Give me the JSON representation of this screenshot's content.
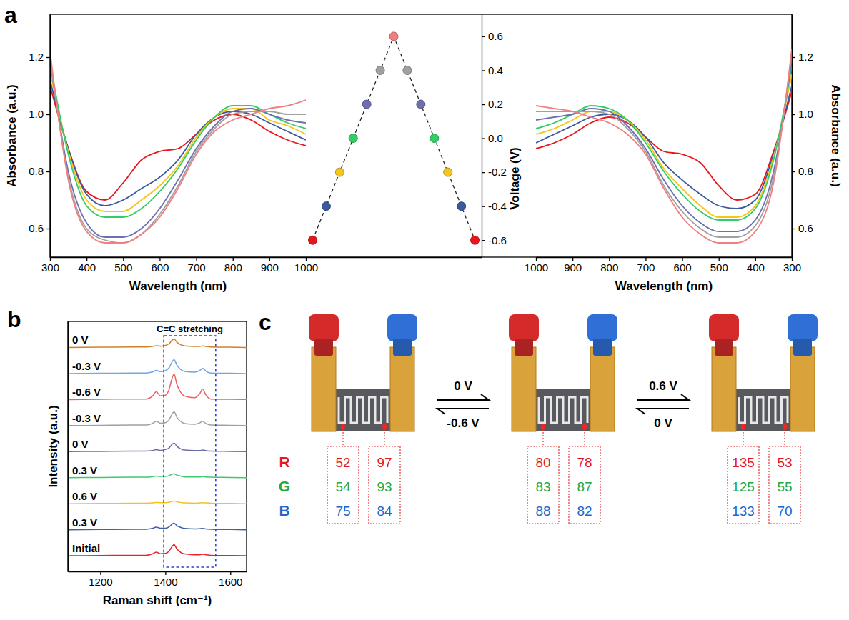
{
  "chart_data": [
    {
      "type": "line",
      "x_label": "Wavelength (nm)",
      "y_label": "Absorbance (a.u.)",
      "x": [
        300,
        350,
        400,
        450,
        500,
        550,
        600,
        650,
        700,
        750,
        800,
        850,
        900,
        950,
        1000
      ],
      "xlim": [
        300,
        1000
      ],
      "xticks": [
        300,
        400,
        500,
        600,
        700,
        800,
        900,
        1000
      ],
      "ylim": [
        0.5,
        1.35
      ],
      "yticks": [
        0.6,
        0.8,
        {
          "value": 1,
          "label": "1.0"
        },
        1.2
      ],
      "series": [
        {
          "color": "#e8161c",
          "values": [
            1.1,
            0.88,
            0.73,
            0.7,
            0.76,
            0.84,
            0.87,
            0.88,
            0.93,
            0.98,
            1.0,
            0.98,
            0.94,
            0.91,
            0.89
          ]
        },
        {
          "color": "#3a5a9c",
          "values": [
            1.12,
            0.88,
            0.72,
            0.68,
            0.7,
            0.74,
            0.78,
            0.84,
            0.93,
            0.99,
            1.01,
            1.0,
            0.97,
            0.94,
            0.91
          ]
        },
        {
          "color": "#f5c518",
          "values": [
            1.15,
            0.87,
            0.7,
            0.66,
            0.66,
            0.7,
            0.75,
            0.82,
            0.92,
            0.99,
            1.02,
            1.02,
            0.98,
            0.96,
            0.93
          ]
        },
        {
          "color": "#33cc66",
          "values": [
            1.18,
            0.86,
            0.68,
            0.64,
            0.64,
            0.67,
            0.73,
            0.81,
            0.91,
            0.99,
            1.03,
            1.03,
            1.0,
            0.97,
            0.95
          ]
        },
        {
          "color": "#6f6fb0",
          "values": [
            1.19,
            0.8,
            0.62,
            0.57,
            0.57,
            0.6,
            0.67,
            0.77,
            0.88,
            0.96,
            1.01,
            1.02,
            1.0,
            0.98,
            0.97
          ]
        },
        {
          "color": "#a0a0a0",
          "values": [
            1.2,
            0.78,
            0.6,
            0.56,
            0.55,
            0.58,
            0.65,
            0.75,
            0.87,
            0.95,
            1.0,
            1.01,
            1.01,
            1.0,
            1.0
          ]
        },
        {
          "color": "#f08080",
          "values": [
            1.22,
            0.77,
            0.59,
            0.55,
            0.55,
            0.58,
            0.64,
            0.74,
            0.86,
            0.94,
            0.98,
            1.0,
            1.02,
            1.03,
            1.05
          ]
        }
      ]
    },
    {
      "type": "line",
      "y_label": "Voltage (V)",
      "x": [
        0,
        1,
        2,
        3,
        4,
        5,
        6,
        7,
        8,
        9,
        10,
        11,
        12
      ],
      "xlim": [
        -0.5,
        12.5
      ],
      "xticks": [],
      "ylim": [
        -0.7,
        0.73
      ],
      "yticks": [
        0.6,
        0.4,
        0.2,
        {
          "value": 0,
          "label": "0.0"
        },
        -0.2,
        -0.4,
        -0.6
      ],
      "tick_labels": "y",
      "marker": "circle",
      "line_style": "dashed",
      "series": [
        {
          "color": "#222222",
          "colors": [
            "#e8161c",
            "#3a5a9c",
            "#f5c518",
            "#33cc66",
            "#6f6fb0",
            "#a0a0a0",
            "#f08080",
            "#a0a0a0",
            "#6f6fb0",
            "#33cc66",
            "#f5c518",
            "#3a5a9c",
            "#e8161c"
          ],
          "values": [
            -0.6,
            -0.4,
            -0.2,
            0,
            0.2,
            0.4,
            0.6,
            0.4,
            0.2,
            0,
            -0.2,
            -0.4,
            -0.6
          ]
        }
      ]
    },
    {
      "type": "line",
      "x_label": "Wavelength (nm)",
      "y_label": "Absorbance (a.u.)",
      "x": [
        300,
        350,
        400,
        450,
        500,
        550,
        600,
        650,
        700,
        750,
        800,
        850,
        900,
        950,
        1000
      ],
      "xlim": [
        1000,
        300
      ],
      "xticks": [
        1000,
        900,
        800,
        700,
        600,
        500,
        400,
        300
      ],
      "ylim": [
        0.5,
        1.35
      ],
      "yticks": [
        0.6,
        0.8,
        {
          "value": 1,
          "label": "1.0"
        },
        1.2
      ],
      "series": [
        {
          "color": "#e8161c",
          "values": [
            1.08,
            0.87,
            0.72,
            0.7,
            0.75,
            0.83,
            0.86,
            0.87,
            0.92,
            0.97,
            0.99,
            0.97,
            0.93,
            0.9,
            0.88
          ]
        },
        {
          "color": "#3a5a9c",
          "values": [
            1.1,
            0.86,
            0.7,
            0.67,
            0.68,
            0.72,
            0.77,
            0.83,
            0.92,
            0.98,
            1.0,
            0.99,
            0.96,
            0.93,
            0.9
          ]
        },
        {
          "color": "#f5c518",
          "values": [
            1.14,
            0.85,
            0.68,
            0.64,
            0.64,
            0.68,
            0.74,
            0.81,
            0.91,
            0.98,
            1.01,
            1.01,
            0.98,
            0.95,
            0.93
          ]
        },
        {
          "color": "#33cc66",
          "values": [
            1.17,
            0.84,
            0.67,
            0.63,
            0.63,
            0.66,
            0.72,
            0.8,
            0.9,
            0.98,
            1.02,
            1.03,
            1.0,
            0.97,
            0.95
          ]
        },
        {
          "color": "#6f6fb0",
          "values": [
            1.19,
            0.8,
            0.63,
            0.59,
            0.59,
            0.62,
            0.68,
            0.77,
            0.88,
            0.96,
            1.01,
            1.02,
            1.0,
            0.99,
            0.98
          ]
        },
        {
          "color": "#a0a0a0",
          "values": [
            1.21,
            0.78,
            0.61,
            0.57,
            0.57,
            0.6,
            0.66,
            0.75,
            0.87,
            0.95,
            1.0,
            1.01,
            1.01,
            1.01,
            1.01
          ]
        },
        {
          "color": "#f08080",
          "values": [
            1.23,
            0.76,
            0.59,
            0.55,
            0.55,
            0.58,
            0.64,
            0.74,
            0.86,
            0.93,
            0.97,
            0.99,
            1.01,
            1.02,
            1.03
          ]
        }
      ]
    },
    {
      "type": "line",
      "x_label": "Raman shift (cm⁻¹)",
      "y_label": "Intensity (a.u.)",
      "x": [
        1100,
        1200,
        1300,
        1340,
        1360,
        1372,
        1385,
        1400,
        1412,
        1420,
        1427,
        1435,
        1445,
        1460,
        1490,
        1505,
        1515,
        1525,
        1540,
        1600,
        1650
      ],
      "xlim": [
        1100,
        1650
      ],
      "xticks": [
        1200,
        1400,
        1600
      ],
      "ylim": [
        0,
        9.6
      ],
      "yticks": [],
      "tick_labels": "x",
      "annotations": [
        {
          "text": "C=C stretching",
          "x": [
            1395,
            1555
          ]
        }
      ],
      "series": [
        {
          "name": "Initial",
          "color": "#e8202a",
          "values": [
            0.6,
            0.61,
            0.62,
            0.62,
            0.67,
            0.74,
            0.68,
            0.69,
            0.79,
            0.95,
            1.03,
            0.87,
            0.75,
            0.67,
            0.64,
            0.64,
            0.66,
            0.64,
            0.62,
            0.61,
            0.6
          ]
        },
        {
          "name": "0.3 V",
          "color": "#3f5fa8",
          "values": [
            1.6,
            1.61,
            1.62,
            1.62,
            1.65,
            1.7,
            1.66,
            1.66,
            1.72,
            1.81,
            1.85,
            1.76,
            1.7,
            1.65,
            1.63,
            1.64,
            1.65,
            1.63,
            1.62,
            1.61,
            1.6
          ]
        },
        {
          "name": "0.6 V",
          "color": "#f0c419",
          "values": [
            2.6,
            2.61,
            2.62,
            2.62,
            2.63,
            2.65,
            2.64,
            2.64,
            2.66,
            2.69,
            2.71,
            2.68,
            2.65,
            2.63,
            2.62,
            2.63,
            2.64,
            2.63,
            2.62,
            2.61,
            2.6
          ]
        },
        {
          "name": "0.3 V",
          "color": "#40c870",
          "values": [
            3.6,
            3.61,
            3.62,
            3.62,
            3.64,
            3.66,
            3.65,
            3.65,
            3.68,
            3.73,
            3.75,
            3.7,
            3.67,
            3.63,
            3.63,
            3.63,
            3.64,
            3.63,
            3.62,
            3.61,
            3.6
          ]
        },
        {
          "name": "0 V",
          "color": "#6c6ca8",
          "values": [
            4.6,
            4.61,
            4.62,
            4.62,
            4.64,
            4.68,
            4.65,
            4.68,
            4.75,
            4.87,
            4.93,
            4.81,
            4.72,
            4.66,
            4.64,
            4.64,
            4.66,
            4.64,
            4.62,
            4.61,
            4.6
          ]
        },
        {
          "name": "-0.3 V",
          "color": "#a0a0a0",
          "values": [
            5.6,
            5.61,
            5.62,
            5.62,
            5.68,
            5.77,
            5.69,
            5.71,
            5.83,
            6.03,
            6.13,
            5.93,
            5.78,
            5.68,
            5.65,
            5.7,
            5.77,
            5.68,
            5.62,
            5.61,
            5.6
          ]
        },
        {
          "name": "-0.6 V",
          "color": "#f06060",
          "values": [
            6.6,
            6.61,
            6.62,
            6.62,
            6.73,
            6.9,
            6.74,
            6.77,
            7.01,
            7.39,
            7.58,
            7.2,
            6.92,
            6.73,
            6.67,
            6.81,
            7.0,
            6.77,
            6.62,
            6.61,
            6.6
          ]
        },
        {
          "name": "-0.3 V",
          "color": "#70a8e0",
          "values": [
            7.6,
            7.61,
            7.62,
            7.62,
            7.66,
            7.72,
            7.67,
            7.71,
            7.83,
            8.03,
            8.13,
            7.93,
            7.78,
            7.68,
            7.65,
            7.71,
            7.8,
            7.69,
            7.62,
            7.61,
            7.6
          ]
        },
        {
          "name": "0 V",
          "color": "#d0802a",
          "values": [
            8.6,
            8.61,
            8.62,
            8.62,
            8.64,
            8.67,
            8.65,
            8.68,
            8.75,
            8.87,
            8.93,
            8.81,
            8.72,
            8.66,
            8.64,
            8.64,
            8.66,
            8.64,
            8.62,
            8.61,
            8.6
          ]
        }
      ]
    }
  ],
  "panel_labels": [
    "a",
    "b",
    "c"
  ],
  "panel_c": {
    "channels": [
      "R",
      "G",
      "B"
    ],
    "devices": [
      {
        "left": [
          52,
          54,
          75
        ],
        "right": [
          97,
          93,
          84
        ]
      },
      {
        "left": [
          80,
          83,
          88
        ],
        "right": [
          78,
          87,
          82
        ]
      },
      {
        "left": [
          135,
          125,
          133
        ],
        "right": [
          53,
          55,
          70
        ]
      }
    ],
    "transitions": [
      {
        "forward": "0 V",
        "reverse": "-0.6 V"
      },
      {
        "forward": "0.6 V",
        "reverse": "0 V"
      }
    ]
  }
}
